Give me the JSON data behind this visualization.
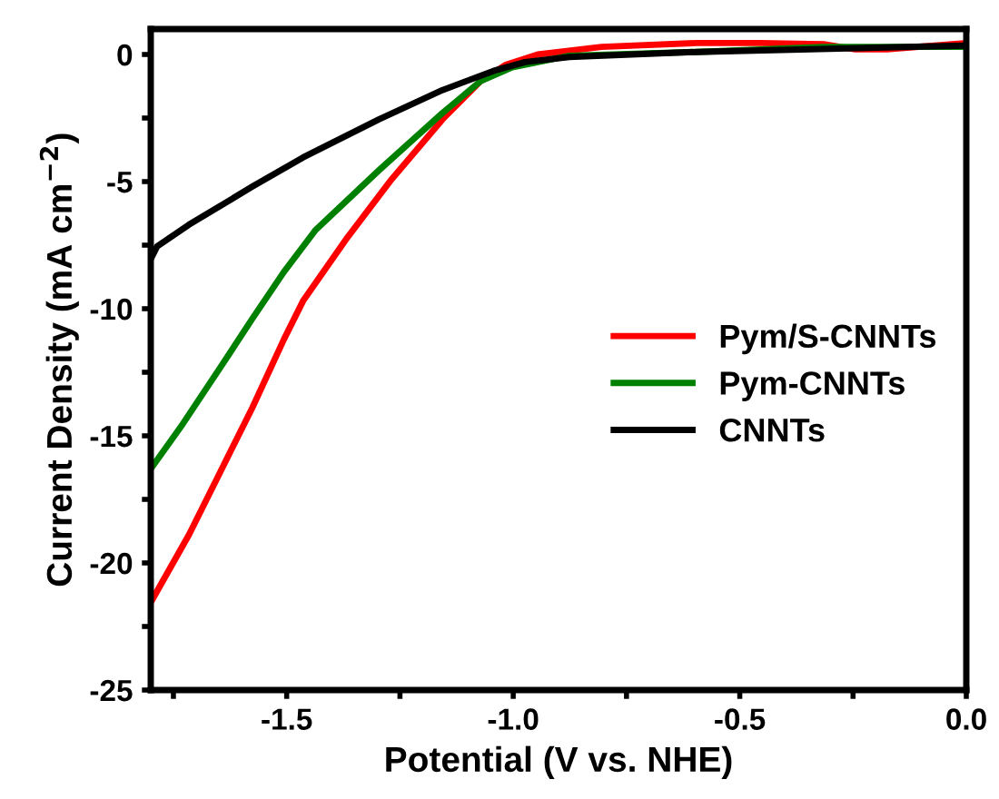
{
  "chart_data": {
    "type": "line",
    "xlabel": "Potential (V vs. NHE)",
    "ylabel": "Current Density (mA cm$^{−2}$)",
    "xlim": [
      -1.8,
      0.0
    ],
    "ylim": [
      -25,
      1
    ],
    "xticks": [
      {
        "value": -1.75,
        "label": null
      },
      -1.5,
      {
        "value": -1.25,
        "label": null
      },
      {
        "value": -1.0,
        "label": "-1.0"
      },
      {
        "value": -0.75,
        "label": null
      },
      -0.5,
      {
        "value": -0.25,
        "label": null
      },
      {
        "value": 0.0,
        "label": "0.0"
      }
    ],
    "yticks": [
      -25,
      {
        "value": -22.5,
        "label": null
      },
      -20,
      {
        "value": -17.5,
        "label": null
      },
      -15,
      {
        "value": -12.5,
        "label": null
      },
      -10,
      {
        "value": -7.5,
        "label": null
      },
      -5,
      {
        "value": -2.5,
        "label": null
      },
      0
    ],
    "legend": "right",
    "grid": false,
    "marker": "none",
    "line_style": "solid",
    "series": [
      {
        "name": "Pym/S-CNNTs",
        "color": "#ff0000",
        "x": [
          -1.8,
          -1.716,
          -1.646,
          -1.576,
          -1.506,
          -1.464,
          -1.366,
          -1.268,
          -1.156,
          -1.072,
          -1.016,
          -0.946,
          -0.805,
          -0.595,
          -0.455,
          -0.315,
          -0.245,
          -0.175,
          0.0
        ],
        "values": [
          -21.55,
          -18.9,
          -16.4,
          -13.9,
          -11.2,
          -9.7,
          -7.2,
          -4.9,
          -2.55,
          -1.05,
          -0.4,
          0.0,
          0.3,
          0.45,
          0.45,
          0.4,
          0.2,
          0.2,
          0.45
        ]
      },
      {
        "name": "Pym-CNNTs",
        "color": "#008000",
        "x": [
          -1.8,
          -1.73,
          -1.646,
          -1.576,
          -1.506,
          -1.436,
          -1.296,
          -1.156,
          -1.072,
          -1.002,
          -0.876,
          -0.595,
          -0.315,
          0.0
        ],
        "values": [
          -16.3,
          -14.55,
          -12.3,
          -10.4,
          -8.55,
          -6.9,
          -4.55,
          -2.3,
          -1.05,
          -0.5,
          -0.05,
          0.1,
          0.3,
          0.3
        ]
      },
      {
        "name": "CNNTs",
        "color": "#000000",
        "x": [
          -1.8,
          -1.786,
          -1.716,
          -1.576,
          -1.464,
          -1.296,
          -1.156,
          -1.044,
          -0.974,
          -0.876,
          -0.595,
          0.0
        ],
        "values": [
          -8.05,
          -7.55,
          -6.7,
          -5.2,
          -4.05,
          -2.55,
          -1.4,
          -0.65,
          -0.3,
          -0.1,
          0.1,
          0.35
        ]
      }
    ]
  }
}
